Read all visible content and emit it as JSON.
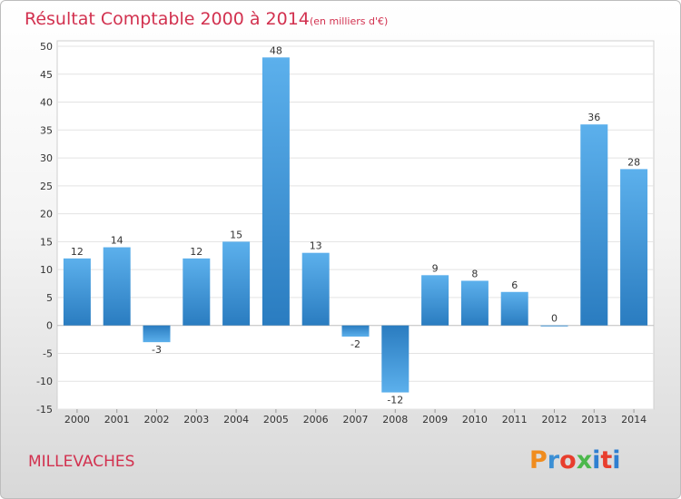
{
  "chart_data": {
    "type": "bar",
    "title": "Résultat Comptable 2000 à 2014",
    "subtitle": "(en milliers d'€)",
    "categories": [
      "2000",
      "2001",
      "2002",
      "2003",
      "2004",
      "2005",
      "2006",
      "2007",
      "2008",
      "2009",
      "2010",
      "2011",
      "2012",
      "2013",
      "2014"
    ],
    "values": [
      12,
      14,
      -3,
      12,
      15,
      48,
      13,
      -2,
      -12,
      9,
      8,
      6,
      0,
      36,
      28
    ],
    "ylim": [
      -15,
      50
    ],
    "yticks": [
      -15,
      -10,
      -5,
      0,
      5,
      10,
      15,
      20,
      25,
      30,
      35,
      40,
      45,
      50
    ],
    "grid": true,
    "xlabel": "",
    "ylabel": "",
    "bar_color": "#3f97d8"
  },
  "footer": {
    "commune": "MILLEVACHES",
    "logo_letters": [
      "P",
      "r",
      "o",
      "x",
      "i",
      "t",
      "i"
    ],
    "logo_colors": [
      "#f08c1e",
      "#3b8fd4",
      "#e83e2d",
      "#4bb84b",
      "#2f7fd1",
      "#e83e2d",
      "#2f7fd1"
    ]
  }
}
